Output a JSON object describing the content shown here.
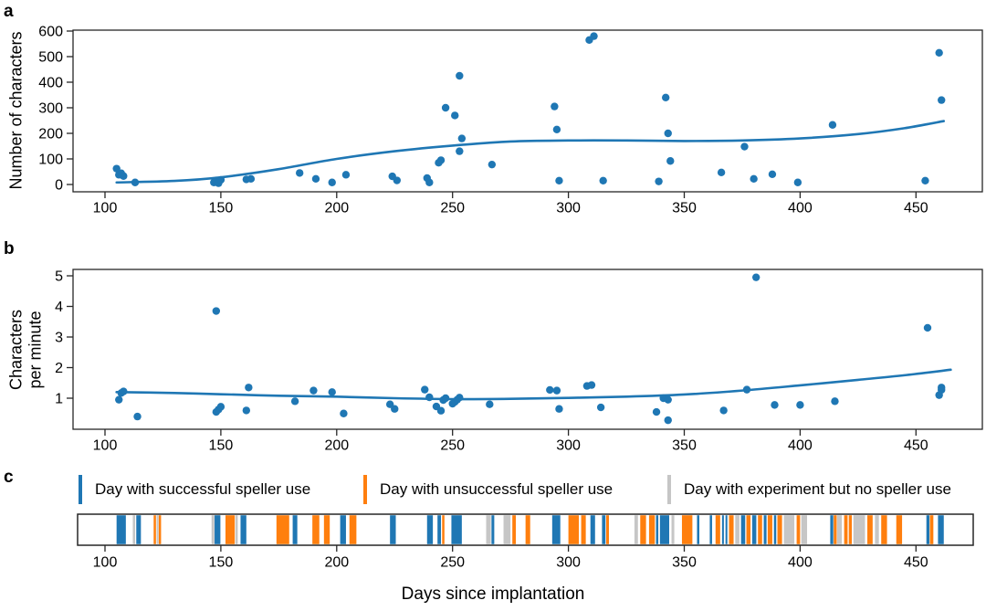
{
  "figure": {
    "panel_letters": {
      "a": "a",
      "b": "b",
      "c": "c"
    },
    "xlabel": "Days since implantation"
  },
  "colors": {
    "marker": "#1f77b4",
    "trend": "#1f77b4",
    "axis": "#262626",
    "successful": "#1f77b4",
    "unsuccessful": "#ff7f0e",
    "no_speller": "#c6c6c6"
  },
  "legend": {
    "items": [
      {
        "type": "successful",
        "color": "#1f77b4",
        "label": "Day with successful speller use"
      },
      {
        "type": "unsuccessful",
        "color": "#ff7f0e",
        "label": "Day with unsuccessful speller use"
      },
      {
        "type": "no_speller",
        "color": "#c6c6c6",
        "label": "Day with experiment but no speller use"
      }
    ]
  },
  "chart_data": [
    {
      "type": "scatter",
      "panel": "a",
      "ylabel": "Number of characters",
      "xticks": [
        100,
        150,
        200,
        250,
        300,
        350,
        400,
        450
      ],
      "yticks": [
        0,
        100,
        200,
        300,
        400,
        500,
        600
      ],
      "xlim": [
        88,
        479
      ],
      "ylim": [
        -30,
        610
      ],
      "points": [
        [
          105,
          62
        ],
        [
          106,
          38
        ],
        [
          107,
          44
        ],
        [
          108,
          33
        ],
        [
          113,
          8
        ],
        [
          147,
          8
        ],
        [
          148,
          16
        ],
        [
          149,
          5
        ],
        [
          150,
          18
        ],
        [
          161,
          20
        ],
        [
          163,
          22
        ],
        [
          184,
          45
        ],
        [
          191,
          22
        ],
        [
          198,
          8
        ],
        [
          204,
          38
        ],
        [
          224,
          32
        ],
        [
          226,
          16
        ],
        [
          239,
          25
        ],
        [
          240,
          8
        ],
        [
          244,
          85
        ],
        [
          245,
          95
        ],
        [
          247,
          300
        ],
        [
          251,
          270
        ],
        [
          253,
          130
        ],
        [
          253,
          425
        ],
        [
          254,
          180
        ],
        [
          267,
          78
        ],
        [
          294,
          305
        ],
        [
          295,
          215
        ],
        [
          296,
          15
        ],
        [
          309,
          565
        ],
        [
          311,
          580
        ],
        [
          315,
          15
        ],
        [
          339,
          12
        ],
        [
          342,
          340
        ],
        [
          343,
          200
        ],
        [
          344,
          92
        ],
        [
          366,
          47
        ],
        [
          376,
          148
        ],
        [
          380,
          22
        ],
        [
          388,
          40
        ],
        [
          399,
          8
        ],
        [
          414,
          233
        ],
        [
          454,
          15
        ],
        [
          460,
          515
        ],
        [
          461,
          330
        ]
      ],
      "trend": [
        [
          105,
          8
        ],
        [
          130,
          14
        ],
        [
          150,
          28
        ],
        [
          175,
          60
        ],
        [
          200,
          100
        ],
        [
          225,
          130
        ],
        [
          250,
          152
        ],
        [
          275,
          168
        ],
        [
          300,
          172
        ],
        [
          325,
          172
        ],
        [
          350,
          170
        ],
        [
          375,
          172
        ],
        [
          400,
          180
        ],
        [
          425,
          197
        ],
        [
          445,
          220
        ],
        [
          462,
          248
        ]
      ]
    },
    {
      "type": "scatter",
      "panel": "b",
      "ylabel": "Characters\nper minute",
      "xticks": [
        100,
        150,
        200,
        250,
        300,
        350,
        400,
        450
      ],
      "yticks": [
        1,
        2,
        3,
        4,
        5
      ],
      "xlim": [
        88,
        479
      ],
      "ylim": [
        0,
        5.2
      ],
      "points": [
        [
          106,
          0.95
        ],
        [
          107,
          1.17
        ],
        [
          108,
          1.22
        ],
        [
          114,
          0.4
        ],
        [
          148,
          3.85
        ],
        [
          148,
          0.55
        ],
        [
          149,
          0.63
        ],
        [
          150,
          0.72
        ],
        [
          161,
          0.6
        ],
        [
          162,
          1.35
        ],
        [
          182,
          0.9
        ],
        [
          190,
          1.25
        ],
        [
          198,
          1.2
        ],
        [
          203,
          0.5
        ],
        [
          223,
          0.8
        ],
        [
          225,
          0.65
        ],
        [
          238,
          1.28
        ],
        [
          240,
          1.03
        ],
        [
          243,
          0.73
        ],
        [
          245,
          0.59
        ],
        [
          246,
          0.94
        ],
        [
          247,
          1.0
        ],
        [
          250,
          0.82
        ],
        [
          251,
          0.88
        ],
        [
          252,
          0.95
        ],
        [
          253,
          1.02
        ],
        [
          266,
          0.8
        ],
        [
          292,
          1.27
        ],
        [
          295,
          1.25
        ],
        [
          296,
          0.65
        ],
        [
          308,
          1.4
        ],
        [
          310,
          1.43
        ],
        [
          314,
          0.7
        ],
        [
          338,
          0.55
        ],
        [
          341,
          1.0
        ],
        [
          343,
          0.95
        ],
        [
          343,
          0.28
        ],
        [
          367,
          0.6
        ],
        [
          377,
          1.28
        ],
        [
          381,
          4.95
        ],
        [
          389,
          0.78
        ],
        [
          400,
          0.78
        ],
        [
          415,
          0.9
        ],
        [
          455,
          3.3
        ],
        [
          460,
          1.1
        ],
        [
          461,
          1.27
        ],
        [
          461,
          1.35
        ]
      ],
      "trend": [
        [
          105,
          1.2
        ],
        [
          130,
          1.17
        ],
        [
          150,
          1.13
        ],
        [
          175,
          1.08
        ],
        [
          200,
          1.05
        ],
        [
          225,
          1.0
        ],
        [
          250,
          0.97
        ],
        [
          275,
          0.98
        ],
        [
          300,
          1.01
        ],
        [
          325,
          1.05
        ],
        [
          350,
          1.12
        ],
        [
          375,
          1.25
        ],
        [
          400,
          1.42
        ],
        [
          425,
          1.6
        ],
        [
          445,
          1.75
        ],
        [
          465,
          1.93
        ]
      ]
    },
    {
      "type": "event-timeline",
      "panel": "c",
      "xticks": [
        100,
        150,
        200,
        250,
        300,
        350,
        400,
        450
      ],
      "xlim": [
        87,
        474
      ],
      "event_types": {
        "s": "successful",
        "u": "unsuccessful",
        "n": "no_speller"
      },
      "events": [
        {
          "d": 105,
          "w": 4,
          "t": "s"
        },
        {
          "d": 112,
          "w": 1,
          "t": "n"
        },
        {
          "d": 113.5,
          "w": 2,
          "t": "s"
        },
        {
          "d": 121,
          "w": 1,
          "t": "u"
        },
        {
          "d": 122.3,
          "w": 0.7,
          "t": "n"
        },
        {
          "d": 123.2,
          "w": 1,
          "t": "u"
        },
        {
          "d": 146,
          "w": 1.2,
          "t": "n"
        },
        {
          "d": 147.3,
          "w": 2.5,
          "t": "s"
        },
        {
          "d": 152,
          "w": 4,
          "t": "u"
        },
        {
          "d": 156.3,
          "w": 1,
          "t": "n"
        },
        {
          "d": 158.5,
          "w": 2.5,
          "t": "s"
        },
        {
          "d": 174,
          "w": 5.5,
          "t": "u"
        },
        {
          "d": 181,
          "w": 2,
          "t": "s"
        },
        {
          "d": 189.5,
          "w": 3,
          "t": "u"
        },
        {
          "d": 194.5,
          "w": 2.5,
          "t": "u"
        },
        {
          "d": 201.5,
          "w": 2.5,
          "t": "s"
        },
        {
          "d": 205.5,
          "w": 3,
          "t": "u"
        },
        {
          "d": 223,
          "w": 2.5,
          "t": "s"
        },
        {
          "d": 239,
          "w": 2.5,
          "t": "s"
        },
        {
          "d": 243.5,
          "w": 1.5,
          "t": "s"
        },
        {
          "d": 245.5,
          "w": 1,
          "t": "u"
        },
        {
          "d": 249.5,
          "w": 4.5,
          "t": "s"
        },
        {
          "d": 264.5,
          "w": 2,
          "t": "n"
        },
        {
          "d": 266.8,
          "w": 1.2,
          "t": "s"
        },
        {
          "d": 272,
          "w": 3,
          "t": "n"
        },
        {
          "d": 275.8,
          "w": 1.5,
          "t": "u"
        },
        {
          "d": 281.5,
          "w": 2,
          "t": "u"
        },
        {
          "d": 293,
          "w": 3.5,
          "t": "s"
        },
        {
          "d": 300,
          "w": 4.5,
          "t": "u"
        },
        {
          "d": 305.5,
          "w": 2,
          "t": "u"
        },
        {
          "d": 309.5,
          "w": 2,
          "t": "s"
        },
        {
          "d": 314.5,
          "w": 1.5,
          "t": "s"
        },
        {
          "d": 316.3,
          "w": 1.2,
          "t": "u"
        },
        {
          "d": 328.5,
          "w": 1.5,
          "t": "n"
        },
        {
          "d": 331,
          "w": 2.5,
          "t": "u"
        },
        {
          "d": 334.8,
          "w": 2.5,
          "t": "u"
        },
        {
          "d": 337.8,
          "w": 1,
          "t": "s"
        },
        {
          "d": 339.5,
          "w": 4,
          "t": "s"
        },
        {
          "d": 344.5,
          "w": 1.2,
          "t": "n"
        },
        {
          "d": 349,
          "w": 4.5,
          "t": "u"
        },
        {
          "d": 355.5,
          "w": 1,
          "t": "s"
        },
        {
          "d": 361,
          "w": 1,
          "t": "s"
        },
        {
          "d": 363.5,
          "w": 2,
          "t": "u"
        },
        {
          "d": 366.3,
          "w": 0.8,
          "t": "s"
        },
        {
          "d": 367.8,
          "w": 0.8,
          "t": "s"
        },
        {
          "d": 369.3,
          "w": 2,
          "t": "u"
        },
        {
          "d": 372,
          "w": 1.8,
          "t": "n"
        },
        {
          "d": 374.5,
          "w": 1.8,
          "t": "s"
        },
        {
          "d": 376.8,
          "w": 1.8,
          "t": "u"
        },
        {
          "d": 379.3,
          "w": 1.8,
          "t": "s"
        },
        {
          "d": 381.8,
          "w": 1.8,
          "t": "u"
        },
        {
          "d": 384.3,
          "w": 1.2,
          "t": "s"
        },
        {
          "d": 386,
          "w": 2,
          "t": "u"
        },
        {
          "d": 388.7,
          "w": 1,
          "t": "s"
        },
        {
          "d": 390.2,
          "w": 2,
          "t": "u"
        },
        {
          "d": 393,
          "w": 4.5,
          "t": "n"
        },
        {
          "d": 398.5,
          "w": 1.5,
          "t": "u"
        },
        {
          "d": 400.5,
          "w": 2.5,
          "t": "n"
        },
        {
          "d": 413,
          "w": 1.3,
          "t": "s"
        },
        {
          "d": 414.5,
          "w": 1.3,
          "t": "u"
        },
        {
          "d": 416,
          "w": 2,
          "t": "n"
        },
        {
          "d": 419,
          "w": 1.5,
          "t": "u"
        },
        {
          "d": 421,
          "w": 1.3,
          "t": "u"
        },
        {
          "d": 423,
          "w": 5,
          "t": "n"
        },
        {
          "d": 429,
          "w": 2.3,
          "t": "u"
        },
        {
          "d": 432.3,
          "w": 1.7,
          "t": "n"
        },
        {
          "d": 435,
          "w": 2.5,
          "t": "u"
        },
        {
          "d": 441.5,
          "w": 2.5,
          "t": "u"
        },
        {
          "d": 454.5,
          "w": 1.3,
          "t": "s"
        },
        {
          "d": 456,
          "w": 1.5,
          "t": "u"
        },
        {
          "d": 459.5,
          "w": 2.5,
          "t": "s"
        }
      ]
    }
  ]
}
